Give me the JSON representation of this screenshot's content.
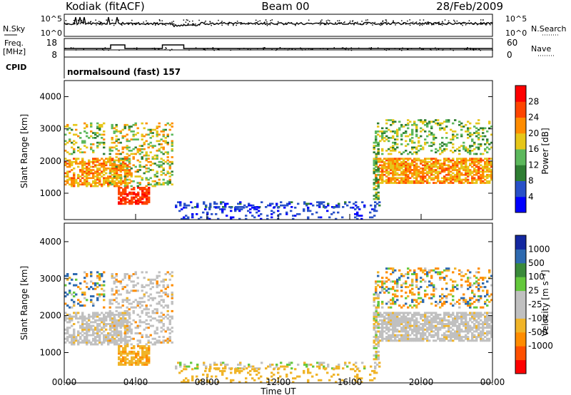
{
  "header": {
    "station": "Kodiak (fitACF)",
    "beam": "Beam 00",
    "date": "28/Feb/2009"
  },
  "labels": {
    "nsky": "N.Sky",
    "nsearch": "N.Search",
    "freq": "Freq.",
    "freq_unit": "[MHz]",
    "nave": "Nave",
    "cpid": "CPID",
    "cpid_text": "normalsound (fast) 157",
    "xlabel": "Time UT"
  },
  "ticks": {
    "noise_left": [
      "10^5",
      "10^0"
    ],
    "noise_right": [
      "10^5",
      "10^0"
    ],
    "freq_left": [
      "18",
      "8"
    ],
    "nave_right": [
      "60",
      "0"
    ]
  },
  "colors": {
    "power": [
      "#0000ff",
      "#2850c8",
      "#2e7d32",
      "#5cb85c",
      "#e6c619",
      "#ff8c00",
      "#ff4500",
      "#ff0000"
    ],
    "velocity": [
      "#ff0000",
      "#ff5000",
      "#ff8c00",
      "#f0b428",
      "#c0c0c0",
      "#c0c0c0",
      "#64c83c",
      "#3a8a3a",
      "#2e6ab0",
      "#1428a0"
    ]
  },
  "chart_data": [
    {
      "type": "heatmap",
      "name": "power",
      "xlabel": "",
      "ylabel": "Slant Range [km]",
      "xlim": [
        0,
        24
      ],
      "ylim": [
        180,
        4500
      ],
      "yticks": [
        "1000",
        "2000",
        "3000",
        "4000"
      ],
      "xticks": [],
      "colorbar": {
        "label": "Power [dB]",
        "range": [
          0,
          32
        ],
        "ticks": [
          "4",
          "8",
          "12",
          "16",
          "20",
          "24",
          "28"
        ]
      }
    },
    {
      "type": "heatmap",
      "name": "velocity",
      "xlabel": "Time UT",
      "ylabel": "Slant Range [km]",
      "xlim": [
        0,
        24
      ],
      "ylim": [
        180,
        4500
      ],
      "yticks": [
        "1000",
        "2000",
        "3000",
        "4000"
      ],
      "xticks": [
        "00:00",
        "04:00",
        "08:00",
        "12:00",
        "16:00",
        "20:00",
        "00:00"
      ],
      "colorbar": {
        "label": "Velocity [m s⁻¹]",
        "ticks": [
          "1000",
          "500",
          "100",
          "25",
          "-25",
          "-100",
          "-500",
          "-1000"
        ]
      }
    }
  ]
}
